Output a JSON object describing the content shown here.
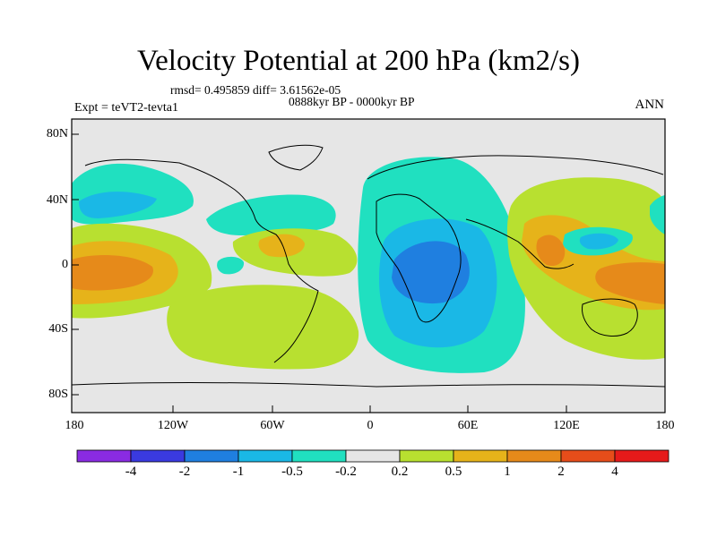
{
  "title": "Velocity Potential at 200 hPa (km2/s)",
  "stats": "rmsd= 0.495859 diff= 3.61562e-05",
  "experiment": "Expt = teVT2-tevta1",
  "period": "0888kyr BP - 0000kyr BP",
  "season": "ANN",
  "lat_labels": [
    "80N",
    "40N",
    "0",
    "40S",
    "80S"
  ],
  "lon_labels": [
    "180",
    "120W",
    "60W",
    "0",
    "60E",
    "120E",
    "180"
  ],
  "colorbar": {
    "labels": [
      "-4",
      "-2",
      "-1",
      "-0.5",
      "-0.2",
      "0.2",
      "0.5",
      "1",
      "2",
      "4"
    ],
    "colors": [
      "#8a2be2",
      "#3a3ae0",
      "#1f7fe0",
      "#1ab8e6",
      "#20e0c0",
      "#e6e6e6",
      "#b8e030",
      "#e6b31a",
      "#e68a1a",
      "#e64d1a",
      "#e61a1a"
    ]
  },
  "colors": {
    "missing": "#e6e6e6",
    "neg_weak": "#20e0c0",
    "neg_mid": "#1ab8e6",
    "neg_strong": "#1f7fe0",
    "pos_weak": "#b8e030",
    "pos_mid": "#e6b31a",
    "pos_strong": "#e68a1a"
  }
}
